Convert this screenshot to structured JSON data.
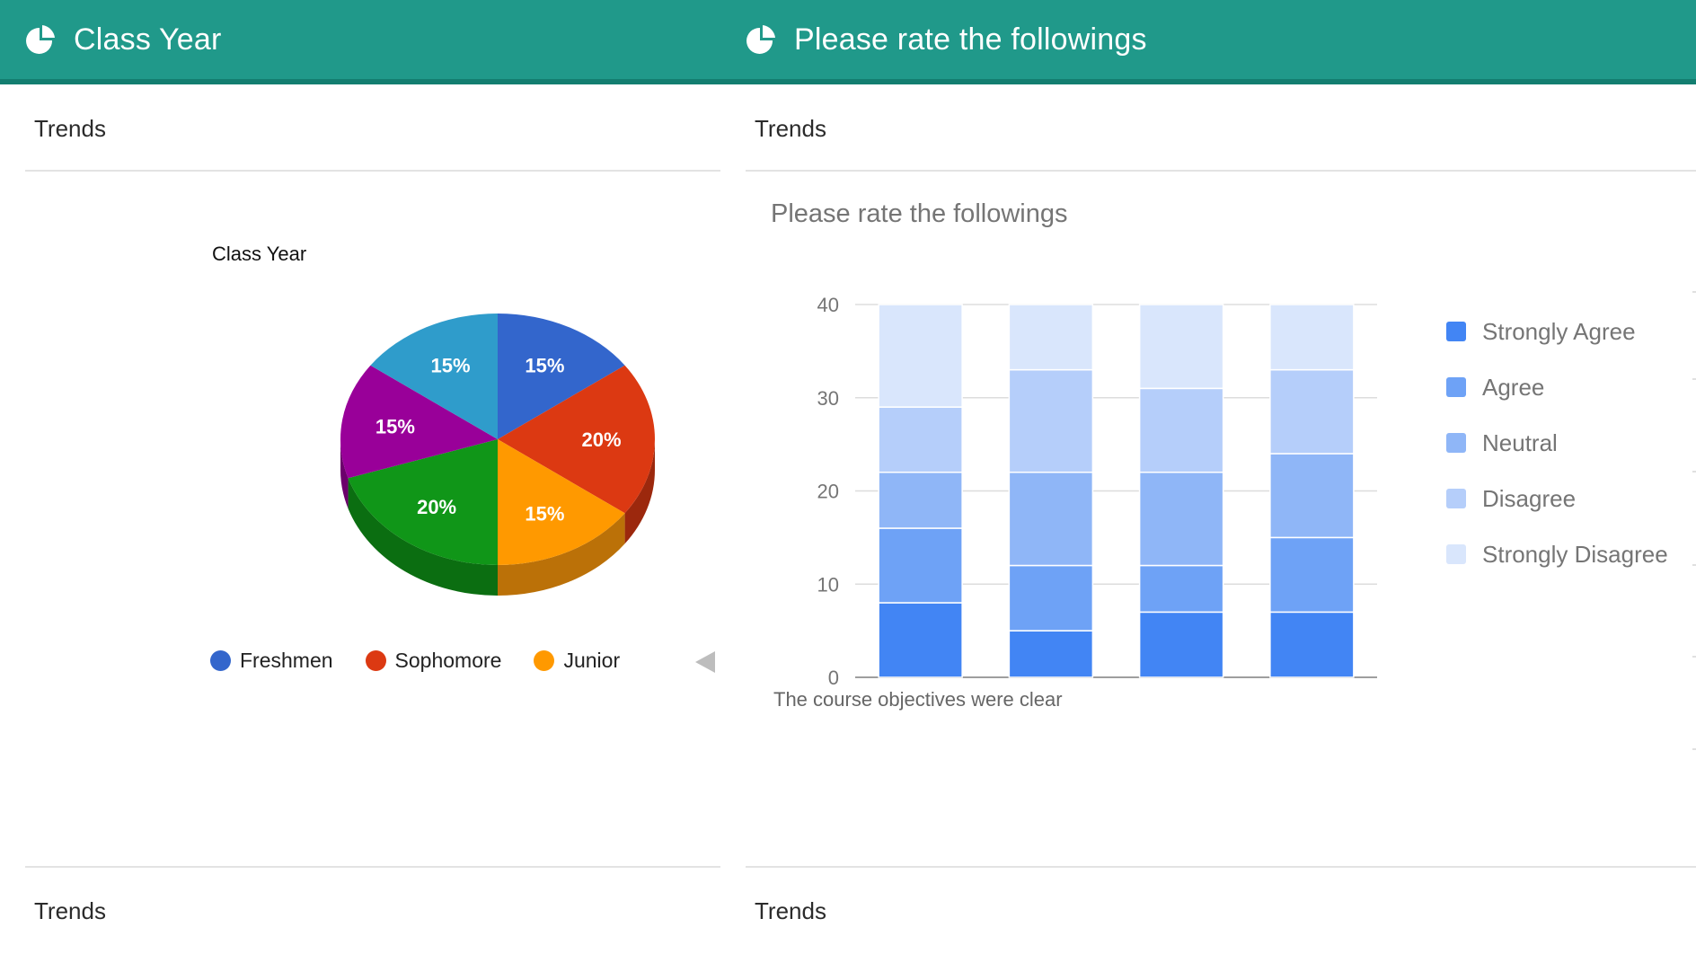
{
  "left_panel": {
    "header_title": "Class Year",
    "header_icon": "pie-chart-icon",
    "trends_top": "Trends",
    "trends_bottom": "Trends",
    "chart_title": "Class Year",
    "legend_prev_icon": "triangle-left-icon"
  },
  "right_panel": {
    "header_title": "Please rate the followings",
    "header_icon": "pie-chart-icon",
    "trends_top": "Trends",
    "trends_bottom": "Trends",
    "chart_title": "Please rate the followings",
    "x_axis_label": "The course objectives were clear"
  },
  "colors": {
    "header": "#20998a",
    "header_border": "#137e70"
  },
  "chart_data": [
    {
      "type": "pie",
      "title": "Class Year",
      "slices": [
        {
          "label": "15%",
          "value": 15,
          "color": "#3366cc",
          "side": "#24479a"
        },
        {
          "label": "20%",
          "value": 20,
          "color": "#dc3912",
          "side": "#9c280d"
        },
        {
          "label": "15%",
          "value": 15,
          "color": "#ff9900",
          "side": "#bb7108"
        },
        {
          "label": "20%",
          "value": 20,
          "color": "#109618",
          "side": "#0b6e11"
        },
        {
          "label": "15%",
          "value": 15,
          "color": "#990099",
          "side": "#6c006c"
        },
        {
          "label": "15%",
          "value": 15,
          "color": "#2f9ccb",
          "side": "#20708f"
        }
      ],
      "legend": [
        {
          "name": "Freshmen",
          "color": "#3366cc"
        },
        {
          "name": "Sophomore",
          "color": "#dc3912"
        },
        {
          "name": "Junior",
          "color": "#ff9900"
        }
      ],
      "legend_placement": "bottom"
    },
    {
      "type": "bar",
      "stacked": true,
      "title": "Please rate the followings",
      "xlabel": "The course objectives were clear",
      "ylabel": "",
      "ylim": [
        0,
        40
      ],
      "yticks": [
        0,
        10,
        20,
        30,
        40
      ],
      "grid": true,
      "categories": [
        "",
        "",
        "",
        ""
      ],
      "series": [
        {
          "name": "Strongly Agree",
          "color": "#4285f4",
          "values": [
            8,
            5,
            7,
            7
          ]
        },
        {
          "name": "Agree",
          "color": "#6ea2f6",
          "values": [
            8,
            7,
            5,
            8
          ]
        },
        {
          "name": "Neutral",
          "color": "#8fb6f7",
          "values": [
            6,
            10,
            10,
            9
          ]
        },
        {
          "name": "Disagree",
          "color": "#b5cefa",
          "values": [
            7,
            11,
            9,
            9
          ]
        },
        {
          "name": "Strongly Disagree",
          "color": "#d9e6fc",
          "values": [
            11,
            7,
            9,
            7
          ]
        }
      ],
      "legend_placement": "right"
    }
  ]
}
